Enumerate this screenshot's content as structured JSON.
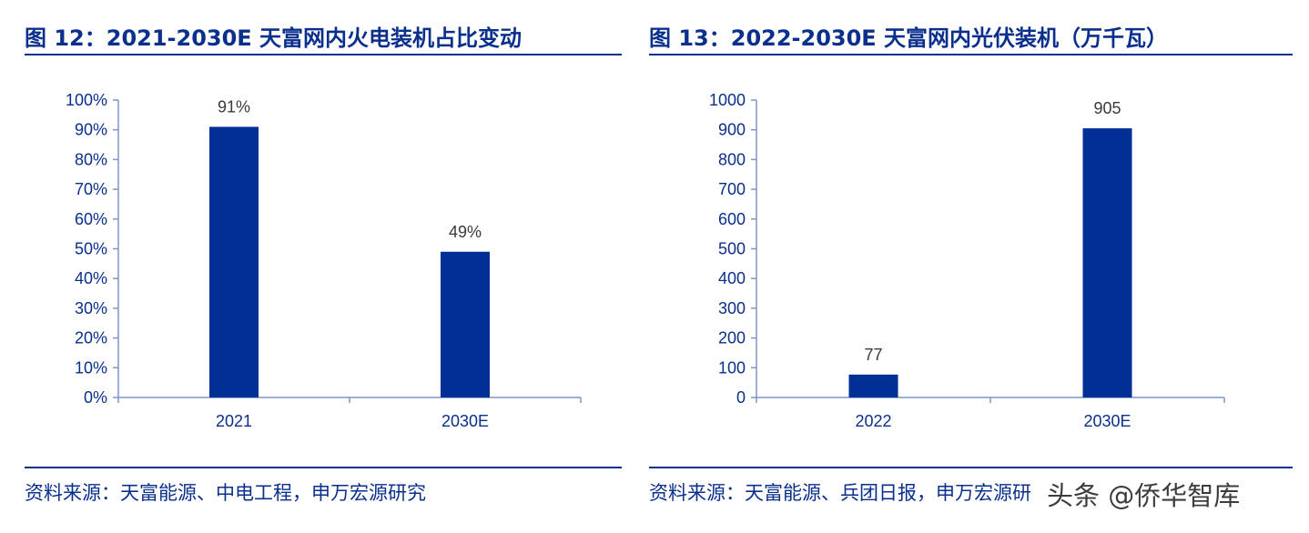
{
  "watermark": "头条 @侨华智库",
  "chart_data": [
    {
      "type": "bar",
      "title": "图 12：2021-2030E 天富网内火电装机占比变动",
      "source": "资料来源：天富能源、中电工程，申万宏源研究",
      "categories": [
        "2021",
        "2030E"
      ],
      "values": [
        91,
        49
      ],
      "value_labels": [
        "91%",
        "49%"
      ],
      "ylim": [
        0,
        100
      ],
      "yticks": [
        0,
        10,
        20,
        30,
        40,
        50,
        60,
        70,
        80,
        90,
        100
      ],
      "ytick_labels": [
        "0%",
        "10%",
        "20%",
        "30%",
        "40%",
        "50%",
        "60%",
        "70%",
        "80%",
        "90%",
        "100%"
      ],
      "xlabel": "",
      "ylabel": "",
      "grid": false,
      "colors": {
        "bar": "#002f96",
        "axis": "#7f96c8"
      }
    },
    {
      "type": "bar",
      "title": "图 13：2022-2030E 天富网内光伏装机（万千瓦）",
      "source": "资料来源：天富能源、兵团日报，申万宏源研",
      "categories": [
        "2022",
        "2030E"
      ],
      "values": [
        77,
        905
      ],
      "value_labels": [
        "77",
        "905"
      ],
      "ylim": [
        0,
        1000
      ],
      "yticks": [
        0,
        100,
        200,
        300,
        400,
        500,
        600,
        700,
        800,
        900,
        1000
      ],
      "ytick_labels": [
        "0",
        "100",
        "200",
        "300",
        "400",
        "500",
        "600",
        "700",
        "800",
        "900",
        "1000"
      ],
      "xlabel": "",
      "ylabel": "",
      "grid": false,
      "colors": {
        "bar": "#002f96",
        "axis": "#7f96c8"
      }
    }
  ]
}
